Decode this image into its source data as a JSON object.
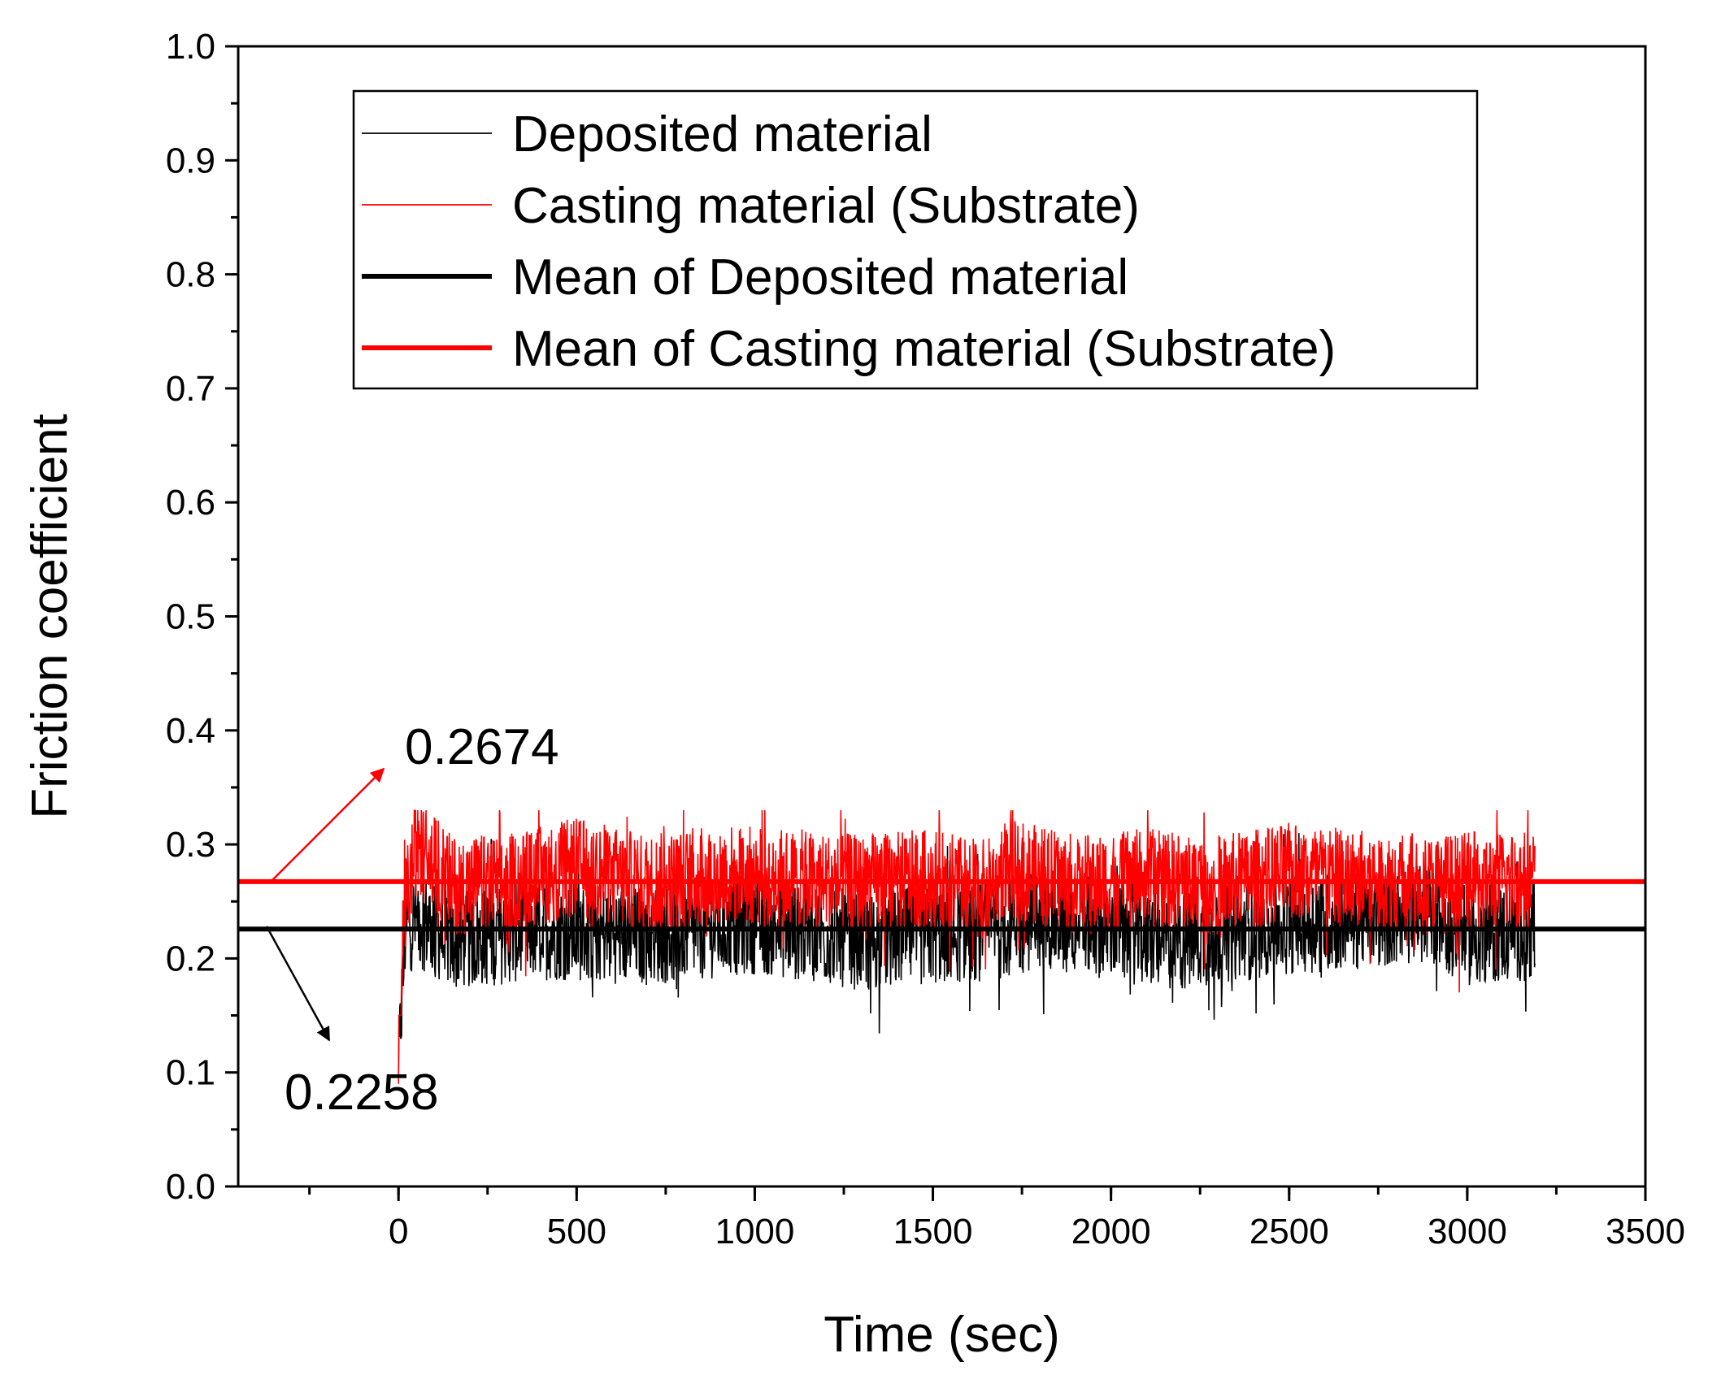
{
  "chart_data": {
    "type": "line",
    "xlabel": "Time (sec)",
    "ylabel": "Friction coefficient",
    "xlim": [
      -450,
      3500
    ],
    "ylim": [
      0.0,
      1.0
    ],
    "xticks": [
      0,
      500,
      1000,
      1500,
      2000,
      2500,
      3000,
      3500
    ],
    "xtick_labels": [
      "0",
      "500",
      "1000",
      "1500",
      "2000",
      "2500",
      "3000",
      "3500"
    ],
    "yticks": [
      0.0,
      0.1,
      0.2,
      0.3,
      0.4,
      0.5,
      0.6,
      0.7,
      0.8,
      0.9,
      1.0
    ],
    "ytick_labels": [
      "0.0",
      "0.1",
      "0.2",
      "0.3",
      "0.4",
      "0.5",
      "0.6",
      "0.7",
      "0.8",
      "0.9",
      "1.0"
    ],
    "series": [
      {
        "name": "Deposited material",
        "color": "#000000",
        "style": "thin",
        "x_range": [
          0,
          3190
        ],
        "mean": 0.2258,
        "band": [
          0.15,
          0.31
        ],
        "trend_x": [
          0,
          20,
          60,
          150,
          400,
          700,
          1000,
          1300,
          1500,
          1700,
          1800,
          2000,
          2150,
          2300,
          2500,
          2750,
          2900,
          3000,
          3190
        ],
        "trend_y": [
          0.1,
          0.23,
          0.235,
          0.215,
          0.225,
          0.22,
          0.23,
          0.215,
          0.22,
          0.225,
          0.235,
          0.225,
          0.215,
          0.22,
          0.23,
          0.235,
          0.24,
          0.22,
          0.225
        ]
      },
      {
        "name": "Casting material (Substrate)",
        "color": "#ff0000",
        "style": "thin",
        "x_range": [
          0,
          3190
        ],
        "mean": 0.2674,
        "band": [
          0.17,
          0.33
        ],
        "trend_x": [
          0,
          15,
          50,
          150,
          300,
          500,
          700,
          900,
          1100,
          1300,
          1500,
          1650,
          1700,
          1900,
          2100,
          2300,
          2500,
          2700,
          2900,
          3190
        ],
        "trend_y": [
          0.09,
          0.24,
          0.3,
          0.265,
          0.265,
          0.28,
          0.265,
          0.275,
          0.27,
          0.265,
          0.27,
          0.26,
          0.28,
          0.265,
          0.27,
          0.265,
          0.275,
          0.27,
          0.265,
          0.27
        ]
      },
      {
        "name": "Mean of Deposited material",
        "color": "#000000",
        "style": "thick",
        "y": 0.2258
      },
      {
        "name": "Mean of Casting material (Substrate)",
        "color": "#ff0000",
        "style": "thick",
        "y": 0.2674
      }
    ],
    "annotations": [
      {
        "text": "0.2674",
        "color": "#ff0000"
      },
      {
        "text": "0.2258",
        "color": "#000000"
      }
    ],
    "legend_position": "top-center",
    "grid": false
  }
}
